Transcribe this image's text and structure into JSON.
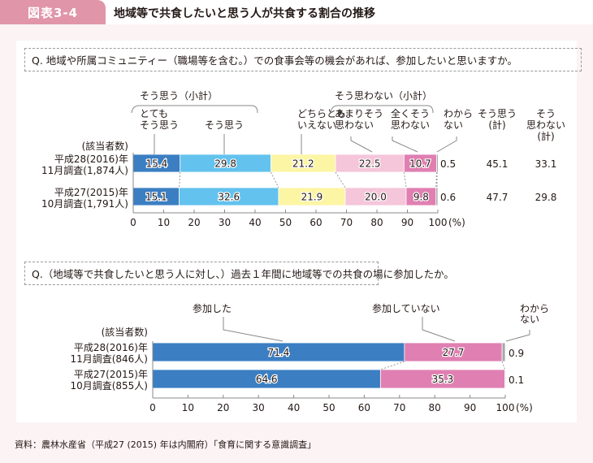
{
  "header": {
    "tag": "図表3-4",
    "title": "地域等で共食したいと思う人が共食する割合の推移"
  },
  "source": "資料：農林水産省（平成27 (2015) 年は内閣府）「食育に関する意識調査」",
  "colors": {
    "tag_bg": "#e195a8",
    "very_agree": "#3b7ec2",
    "agree": "#63c2ee",
    "neutral": "#fcf5a4",
    "disagree_somewhat": "#f5c5da",
    "disagree_strongly": "#e07fb2",
    "unknown": "#a7a7a7",
    "participated": "#3b7ec2",
    "not_participated": "#e07fb2"
  },
  "chart_data": [
    {
      "type": "bar",
      "orientation": "horizontal-stacked",
      "question": "Q. 地域や所属コミュニティー（職場等を含む。）での食事会等の機会があれば、参加したいと思いますか。",
      "row_header": "(該当者数)",
      "categories": [
        [
          "平成28(2016)年",
          "11月調査(1,874人)"
        ],
        [
          "平成27(2015)年",
          "10月調査(1,791人)"
        ]
      ],
      "series": [
        {
          "name": "とても\nそう思う",
          "values": [
            15.4,
            15.1
          ]
        },
        {
          "name": "そう思う",
          "values": [
            29.8,
            32.6
          ]
        },
        {
          "name": "どちらとも\nいえない",
          "values": [
            21.2,
            21.9
          ]
        },
        {
          "name": "あまりそう\n思わない",
          "values": [
            22.5,
            20.0
          ]
        },
        {
          "name": "全くそう\n思わない",
          "values": [
            10.7,
            9.8
          ]
        },
        {
          "name": "わから\nない",
          "values": [
            0.5,
            0.6
          ]
        }
      ],
      "group_labels": [
        "そう思う（小計）",
        "そう思わない（小計）"
      ],
      "extra_columns": [
        {
          "name": "そう思う\n(計)",
          "values": [
            45.1,
            47.7
          ]
        },
        {
          "name": "そう\n思わない\n(計)",
          "values": [
            33.1,
            29.8
          ]
        }
      ],
      "xticks": [
        "0",
        "10",
        "20",
        "30",
        "40",
        "50",
        "60",
        "70",
        "80",
        "90",
        "100"
      ],
      "xunit": "(%)",
      "xlim": [
        0,
        100
      ]
    },
    {
      "type": "bar",
      "orientation": "horizontal-stacked",
      "question": "Q.（地域等で共食したいと思う人に対し、）過去１年間に地域等での共食の場に参加したか。",
      "row_header": "(該当者数)",
      "categories": [
        [
          "平成28(2016)年",
          "11月調査(846人)"
        ],
        [
          "平成27(2015)年",
          "10月調査(855人)"
        ]
      ],
      "series": [
        {
          "name": "参加した",
          "values": [
            71.4,
            64.6
          ]
        },
        {
          "name": "参加していない",
          "values": [
            27.7,
            35.3
          ]
        },
        {
          "name": "わから\nない",
          "values": [
            0.9,
            0.1
          ]
        }
      ],
      "xticks": [
        "0",
        "10",
        "20",
        "30",
        "40",
        "50",
        "60",
        "70",
        "80",
        "90",
        "100"
      ],
      "xunit": "(%)",
      "xlim": [
        0,
        100
      ]
    }
  ]
}
